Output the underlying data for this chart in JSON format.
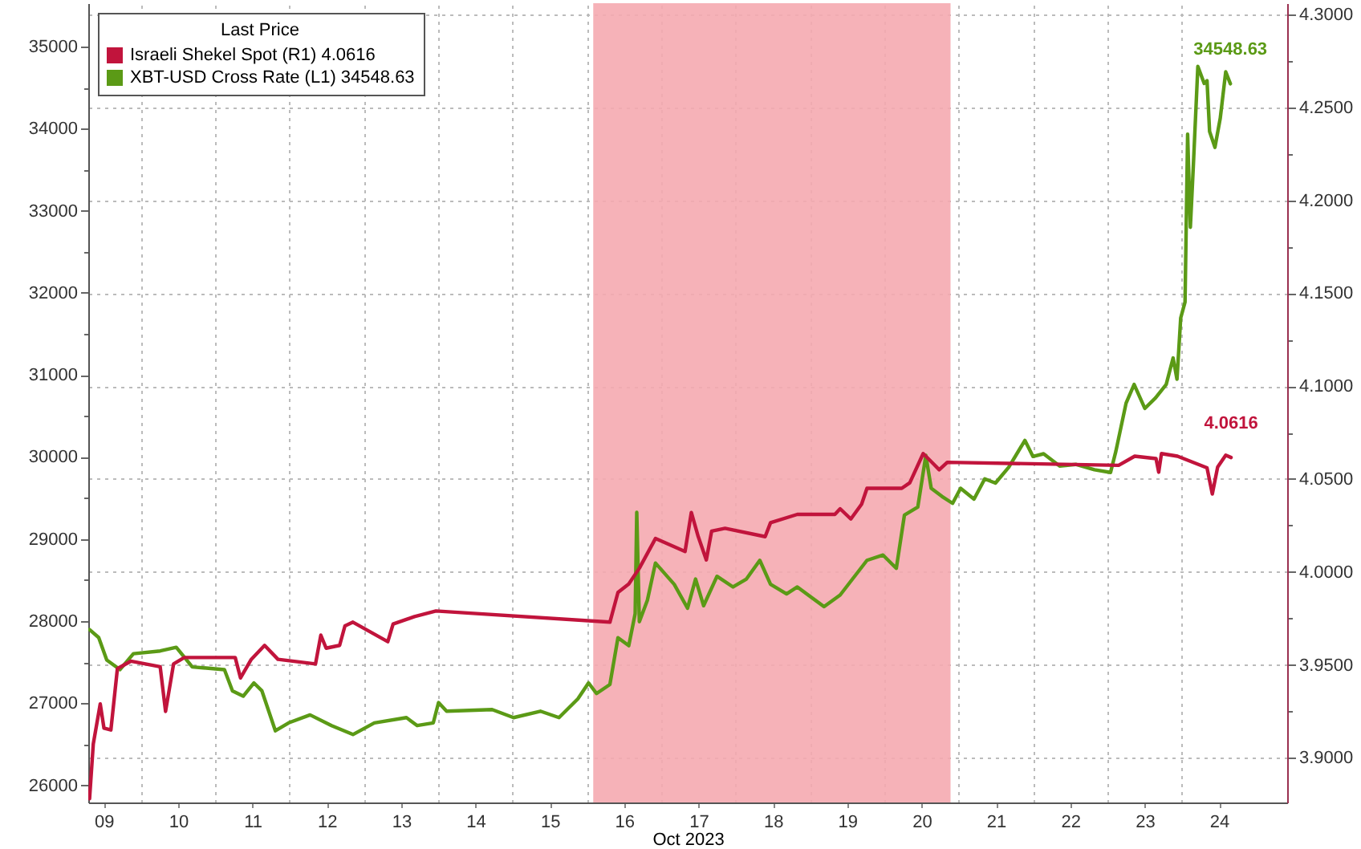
{
  "chart_data": {
    "type": "line",
    "xlabel": "Oct 2023",
    "legend_title": "Last Price",
    "legend": "top left",
    "grid": true,
    "xlim": [
      "2023-10-09T07:00",
      "2023-10-25T10:00"
    ],
    "xticks": [
      {
        "value": "2023-10-09T12:00",
        "label": "09"
      },
      {
        "value": "2023-10-10T12:00",
        "label": "10"
      },
      {
        "value": "2023-10-11T12:00",
        "label": "11"
      },
      {
        "value": "2023-10-12T12:00",
        "label": "12"
      },
      {
        "value": "2023-10-13T12:00",
        "label": "13"
      },
      {
        "value": "2023-10-14T12:00",
        "label": "14"
      },
      {
        "value": "2023-10-15T12:00",
        "label": "15"
      },
      {
        "value": "2023-10-16T12:00",
        "label": "16"
      },
      {
        "value": "2023-10-17T12:00",
        "label": "17"
      },
      {
        "value": "2023-10-18T12:00",
        "label": "18"
      },
      {
        "value": "2023-10-19T12:00",
        "label": "19"
      },
      {
        "value": "2023-10-20T12:00",
        "label": "20"
      },
      {
        "value": "2023-10-21T12:00",
        "label": "21"
      },
      {
        "value": "2023-10-22T12:00",
        "label": "22"
      },
      {
        "value": "2023-10-23T12:00",
        "label": "23"
      },
      {
        "value": "2023-10-24T12:00",
        "label": "24"
      },
      {
        "value": "2023-10-10T00:00",
        "label": null
      },
      {
        "value": "2023-10-11T00:00",
        "label": null
      },
      {
        "value": "2023-10-12T00:00",
        "label": null
      },
      {
        "value": "2023-10-13T00:00",
        "label": null
      },
      {
        "value": "2023-10-14T00:00",
        "label": null
      },
      {
        "value": "2023-10-15T00:00",
        "label": null
      },
      {
        "value": "2023-10-16T00:00",
        "label": null
      },
      {
        "value": "2023-10-17T00:00",
        "label": null
      },
      {
        "value": "2023-10-18T00:00",
        "label": null
      },
      {
        "value": "2023-10-19T00:00",
        "label": null
      },
      {
        "value": "2023-10-20T00:00",
        "label": null
      },
      {
        "value": "2023-10-21T00:00",
        "label": null
      },
      {
        "value": "2023-10-22T00:00",
        "label": null
      },
      {
        "value": "2023-10-23T00:00",
        "label": null
      },
      {
        "value": "2023-10-24T00:00",
        "label": null
      }
    ],
    "ylim": [
      25790,
      35530
    ],
    "yticks": [
      26000,
      27000,
      28000,
      29000,
      30000,
      31000,
      32000,
      33000,
      34000,
      35000,
      {
        "value": 26500,
        "label": null
      },
      {
        "value": 27500,
        "label": null
      },
      {
        "value": 28500,
        "label": null
      },
      {
        "value": 29500,
        "label": null
      },
      {
        "value": 30500,
        "label": null
      },
      {
        "value": 31500,
        "label": null
      },
      {
        "value": 32500,
        "label": null
      },
      {
        "value": 33500,
        "label": null
      },
      {
        "value": 34500,
        "label": null
      }
    ],
    "y2lim": [
      3.876,
      4.306
    ],
    "y2ticks": [
      {
        "value": 3.9,
        "label": "3.9000"
      },
      {
        "value": 3.95,
        "label": "3.9500"
      },
      {
        "value": 4.0,
        "label": "4.0000"
      },
      {
        "value": 4.05,
        "label": "4.0500"
      },
      {
        "value": 4.1,
        "label": "4.1000"
      },
      {
        "value": 4.15,
        "label": "4.1500"
      },
      {
        "value": 4.2,
        "label": "4.2000"
      },
      {
        "value": 4.25,
        "label": "4.2500"
      },
      {
        "value": 4.3,
        "label": "4.3000"
      },
      {
        "value": 3.925,
        "label": null
      },
      {
        "value": 3.975,
        "label": null
      },
      {
        "value": 4.025,
        "label": null
      },
      {
        "value": 4.075,
        "label": null
      },
      {
        "value": 4.125,
        "label": null
      },
      {
        "value": 4.175,
        "label": null
      },
      {
        "value": 4.225,
        "label": null
      },
      {
        "value": 4.275,
        "label": null
      }
    ],
    "bands": [
      {
        "axis": "x",
        "from": "2023-10-16T02:00",
        "to": "2023-10-20T21:20",
        "color": "#f5aab0"
      }
    ],
    "series": [
      {
        "name": "Israeli Shekel Spot (R1) 4.0616",
        "color": "#c1143c",
        "axis": "y2",
        "x": [
          "2023-10-09T07:25",
          "2023-10-09T08:37",
          "2023-10-09T10:52",
          "2023-10-09T12:04",
          "2023-10-09T14:18",
          "2023-10-09T16:24",
          "2023-10-09T20:43",
          "2023-10-10T06:13",
          "2023-10-10T07:57",
          "2023-10-10T10:32",
          "2023-10-10T14:00",
          "2023-10-11T06:26",
          "2023-10-11T08:08",
          "2023-10-11T11:37",
          "2023-10-11T15:55",
          "2023-10-11T20:14",
          "2023-10-12T08:21",
          "2023-10-12T10:04",
          "2023-10-12T11:47",
          "2023-10-12T16:08",
          "2023-10-12T17:51",
          "2023-10-12T20:26",
          "2023-10-13T07:41",
          "2023-10-13T09:24",
          "2023-10-13T16:18",
          "2023-10-13T23:14",
          "2023-10-16T07:23",
          "2023-10-16T09:59",
          "2023-10-16T13:28",
          "2023-10-16T16:53",
          "2023-10-16T22:05",
          "2023-10-17T07:38",
          "2023-10-17T09:40",
          "2023-10-17T11:54",
          "2023-10-17T14:30",
          "2023-10-17T16:13",
          "2023-10-17T20:33",
          "2023-10-18T09:30",
          "2023-10-18T11:14",
          "2023-10-18T19:53",
          "2023-10-19T08:00",
          "2023-10-19T09:42",
          "2023-10-19T13:09",
          "2023-10-19T16:38",
          "2023-10-19T18:22",
          "2023-10-20T05:36",
          "2023-10-20T08:11",
          "2023-10-20T12:30",
          "2023-10-20T15:06",
          "2023-10-20T17:41",
          "2023-10-20T20:17",
          "2023-10-23T03:36",
          "2023-10-23T08:47",
          "2023-10-23T15:40",
          "2023-10-23T16:32",
          "2023-10-23T17:25",
          "2023-10-23T22:36",
          "2023-10-24T08:08",
          "2023-10-24T09:50",
          "2023-10-24T11:34",
          "2023-10-24T14:10",
          "2023-10-24T15:53"
        ],
        "values": [
          3.878,
          3.9075,
          3.929,
          3.916,
          3.915,
          3.948,
          3.952,
          3.949,
          3.925,
          3.9505,
          3.954,
          3.954,
          3.943,
          3.953,
          3.9605,
          3.953,
          3.9505,
          3.966,
          3.959,
          3.9605,
          3.971,
          3.973,
          3.9625,
          3.972,
          3.976,
          3.979,
          3.973,
          3.989,
          3.9935,
          4.002,
          4.018,
          4.011,
          4.032,
          4.019,
          4.0065,
          4.022,
          4.0235,
          4.019,
          4.0265,
          4.031,
          4.031,
          4.034,
          4.0285,
          4.0365,
          4.045,
          4.045,
          4.048,
          4.0637,
          4.0594,
          4.055,
          4.059,
          4.0574,
          4.0623,
          4.061,
          4.0537,
          4.0637,
          4.0623,
          4.056,
          4.042,
          4.0565,
          4.0628,
          4.0616
        ],
        "value_labels": [
          null,
          null,
          null,
          null,
          null,
          null,
          null,
          null,
          null,
          null,
          null,
          null,
          null,
          null,
          null,
          null,
          null,
          null,
          null,
          null,
          null,
          null,
          null,
          null,
          null,
          null,
          null,
          null,
          null,
          null,
          null,
          null,
          null,
          null,
          null,
          null,
          null,
          null,
          null,
          null,
          null,
          null,
          null,
          null,
          null,
          null,
          null,
          null,
          null,
          null,
          null,
          null,
          null,
          null,
          null,
          null,
          null,
          null,
          null,
          null,
          null,
          "4.0616"
        ]
      },
      {
        "name": "XBT-USD Cross Rate (L1) 34548.63",
        "color": "#5b9a16",
        "axis": "y",
        "x": [
          "2023-10-09T07:25",
          "2023-10-09T10:22",
          "2023-10-09T12:58",
          "2023-10-09T17:15",
          "2023-10-09T21:34",
          "2023-10-10T06:13",
          "2023-10-10T11:24",
          "2023-10-10T16:35",
          "2023-10-11T02:57",
          "2023-10-11T05:33",
          "2023-10-11T09:01",
          "2023-10-11T12:27",
          "2023-10-11T15:03",
          "2023-10-11T19:24",
          "2023-10-11T23:41",
          "2023-10-12T06:36",
          "2023-10-12T13:32",
          "2023-10-12T20:26",
          "2023-10-13T03:20",
          "2023-10-13T13:42",
          "2023-10-13T17:11",
          "2023-10-13T22:22",
          "2023-10-14T00:04",
          "2023-10-14T02:40",
          "2023-10-14T17:22",
          "2023-10-15T00:17",
          "2023-10-15T08:57",
          "2023-10-15T14:57",
          "2023-10-15T21:01",
          "2023-10-16T00:29",
          "2023-10-16T03:04",
          "2023-10-16T07:23",
          "2023-10-16T09:59",
          "2023-10-16T13:28",
          "2023-10-16T15:32",
          "2023-10-16T16:03",
          "2023-10-16T16:53",
          "2023-10-16T19:29",
          "2023-10-16T22:05",
          "2023-10-17T04:08",
          "2023-10-17T08:27",
          "2023-10-17T11:02",
          "2023-10-17T13:38",
          "2023-10-17T17:57",
          "2023-10-17T23:08",
          "2023-10-18T03:27",
          "2023-10-18T07:46",
          "2023-10-18T11:14",
          "2023-10-18T16:25",
          "2023-10-18T19:53",
          "2023-10-19T04:30",
          "2023-10-19T09:42",
          "2023-10-19T18:22",
          "2023-10-19T23:33",
          "2023-10-20T03:50",
          "2023-10-20T06:27",
          "2023-10-20T10:46",
          "2023-10-20T13:22",
          "2023-10-20T15:06",
          "2023-10-20T18:33",
          "2023-10-20T22:00",
          "2023-10-21T00:35",
          "2023-10-21T04:55",
          "2023-10-21T08:23",
          "2023-10-21T11:50",
          "2023-10-21T16:09",
          "2023-10-21T21:20",
          "2023-10-21T23:56",
          "2023-10-22T03:23",
          "2023-10-22T08:34",
          "2023-10-22T13:45",
          "2023-10-22T19:48",
          "2023-10-23T00:59",
          "2023-10-23T02:43",
          "2023-10-23T06:00",
          "2023-10-23T08:36",
          "2023-10-23T12:03",
          "2023-10-23T15:30",
          "2023-10-23T18:57",
          "2023-10-23T21:11",
          "2023-10-23T22:26",
          "2023-10-23T23:38",
          "2023-10-24T01:02",
          "2023-10-24T01:52",
          "2023-10-24T02:45",
          "2023-10-24T03:45",
          "2023-10-24T05:10",
          "2023-10-24T07:13",
          "2023-10-24T08:08",
          "2023-10-24T08:57",
          "2023-10-24T10:41",
          "2023-10-24T12:24",
          "2023-10-24T14:10",
          "2023-10-24T15:40"
        ],
        "values": [
          27896,
          27800,
          27526,
          27409,
          27603,
          27636,
          27681,
          27442,
          27409,
          27150,
          27085,
          27247,
          27150,
          26663,
          26760,
          26857,
          26727,
          26618,
          26760,
          26824,
          26727,
          26760,
          27007,
          26902,
          26922,
          26824,
          26902,
          26824,
          27052,
          27247,
          27117,
          27228,
          27798,
          27701,
          28090,
          29325,
          27993,
          28254,
          28708,
          28449,
          28157,
          28513,
          28188,
          28546,
          28416,
          28513,
          28741,
          28449,
          28332,
          28416,
          28176,
          28318,
          28741,
          28805,
          28643,
          29292,
          29390,
          30019,
          29618,
          29520,
          29435,
          29618,
          29487,
          29734,
          29682,
          29877,
          30202,
          30007,
          30039,
          29890,
          29910,
          29844,
          29812,
          30072,
          30656,
          30884,
          30592,
          30720,
          30884,
          31207,
          30948,
          31694,
          31889,
          33934,
          32799,
          33578,
          34760,
          34552,
          34585,
          33968,
          33773,
          34129,
          34694,
          34548.63
        ],
        "value_labels": [
          null,
          null,
          null,
          null,
          null,
          null,
          null,
          null,
          null,
          null,
          null,
          null,
          null,
          null,
          null,
          null,
          null,
          null,
          null,
          null,
          null,
          null,
          null,
          null,
          null,
          null,
          null,
          null,
          null,
          null,
          null,
          null,
          null,
          null,
          null,
          null,
          null,
          null,
          null,
          null,
          null,
          null,
          null,
          null,
          null,
          null,
          null,
          null,
          null,
          null,
          null,
          null,
          null,
          null,
          null,
          null,
          null,
          null,
          null,
          null,
          null,
          null,
          null,
          null,
          null,
          null,
          null,
          null,
          null,
          null,
          null,
          null,
          null,
          null,
          null,
          null,
          null,
          null,
          null,
          null,
          null,
          null,
          null,
          null,
          null,
          null,
          null,
          null,
          null,
          null,
          null,
          null,
          null,
          "34548.63"
        ]
      }
    ]
  }
}
